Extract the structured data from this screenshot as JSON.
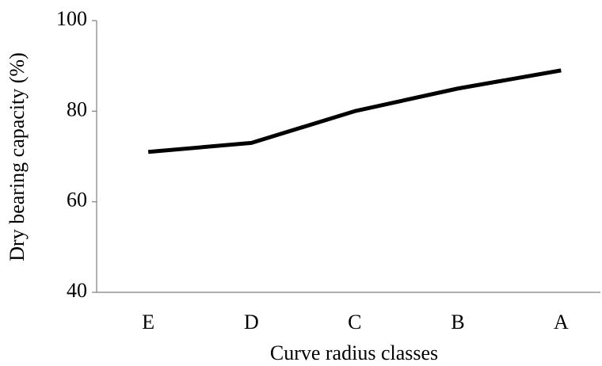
{
  "chart_data": {
    "type": "line",
    "categories": [
      "E",
      "D",
      "C",
      "B",
      "A"
    ],
    "series": [
      {
        "name": "Dry bearing capacity",
        "color": "#000000",
        "values": [
          71,
          73,
          80,
          85,
          89
        ]
      }
    ],
    "xlabel": "Curve radius classes",
    "ylabel": "Dry bearing capacity (%)",
    "ylim": [
      40,
      100
    ],
    "yticks": [
      40,
      60,
      80,
      100
    ],
    "grid": false
  }
}
